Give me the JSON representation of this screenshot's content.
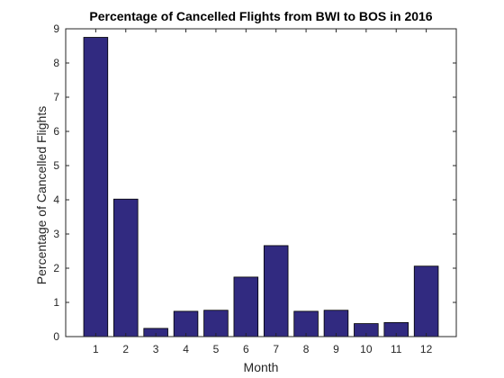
{
  "chart_data": {
    "type": "bar",
    "title": "Percentage of Cancelled Flights from BWI to BOS in 2016",
    "xlabel": "Month",
    "ylabel": "Percentage of Cancelled Flights",
    "categories": [
      "1",
      "2",
      "3",
      "4",
      "5",
      "6",
      "7",
      "8",
      "9",
      "10",
      "11",
      "12"
    ],
    "values": [
      8.75,
      4.02,
      0.24,
      0.74,
      0.77,
      1.74,
      2.66,
      0.74,
      0.77,
      0.38,
      0.41,
      2.06
    ],
    "xlim": [
      0,
      13
    ],
    "ylim": [
      0,
      9
    ],
    "yticks": [
      0,
      1,
      2,
      3,
      4,
      5,
      6,
      7,
      8,
      9
    ],
    "grid": false,
    "colors": {
      "bar": "#312a80",
      "bar_edge": "#000000",
      "axis": "#262626"
    }
  }
}
